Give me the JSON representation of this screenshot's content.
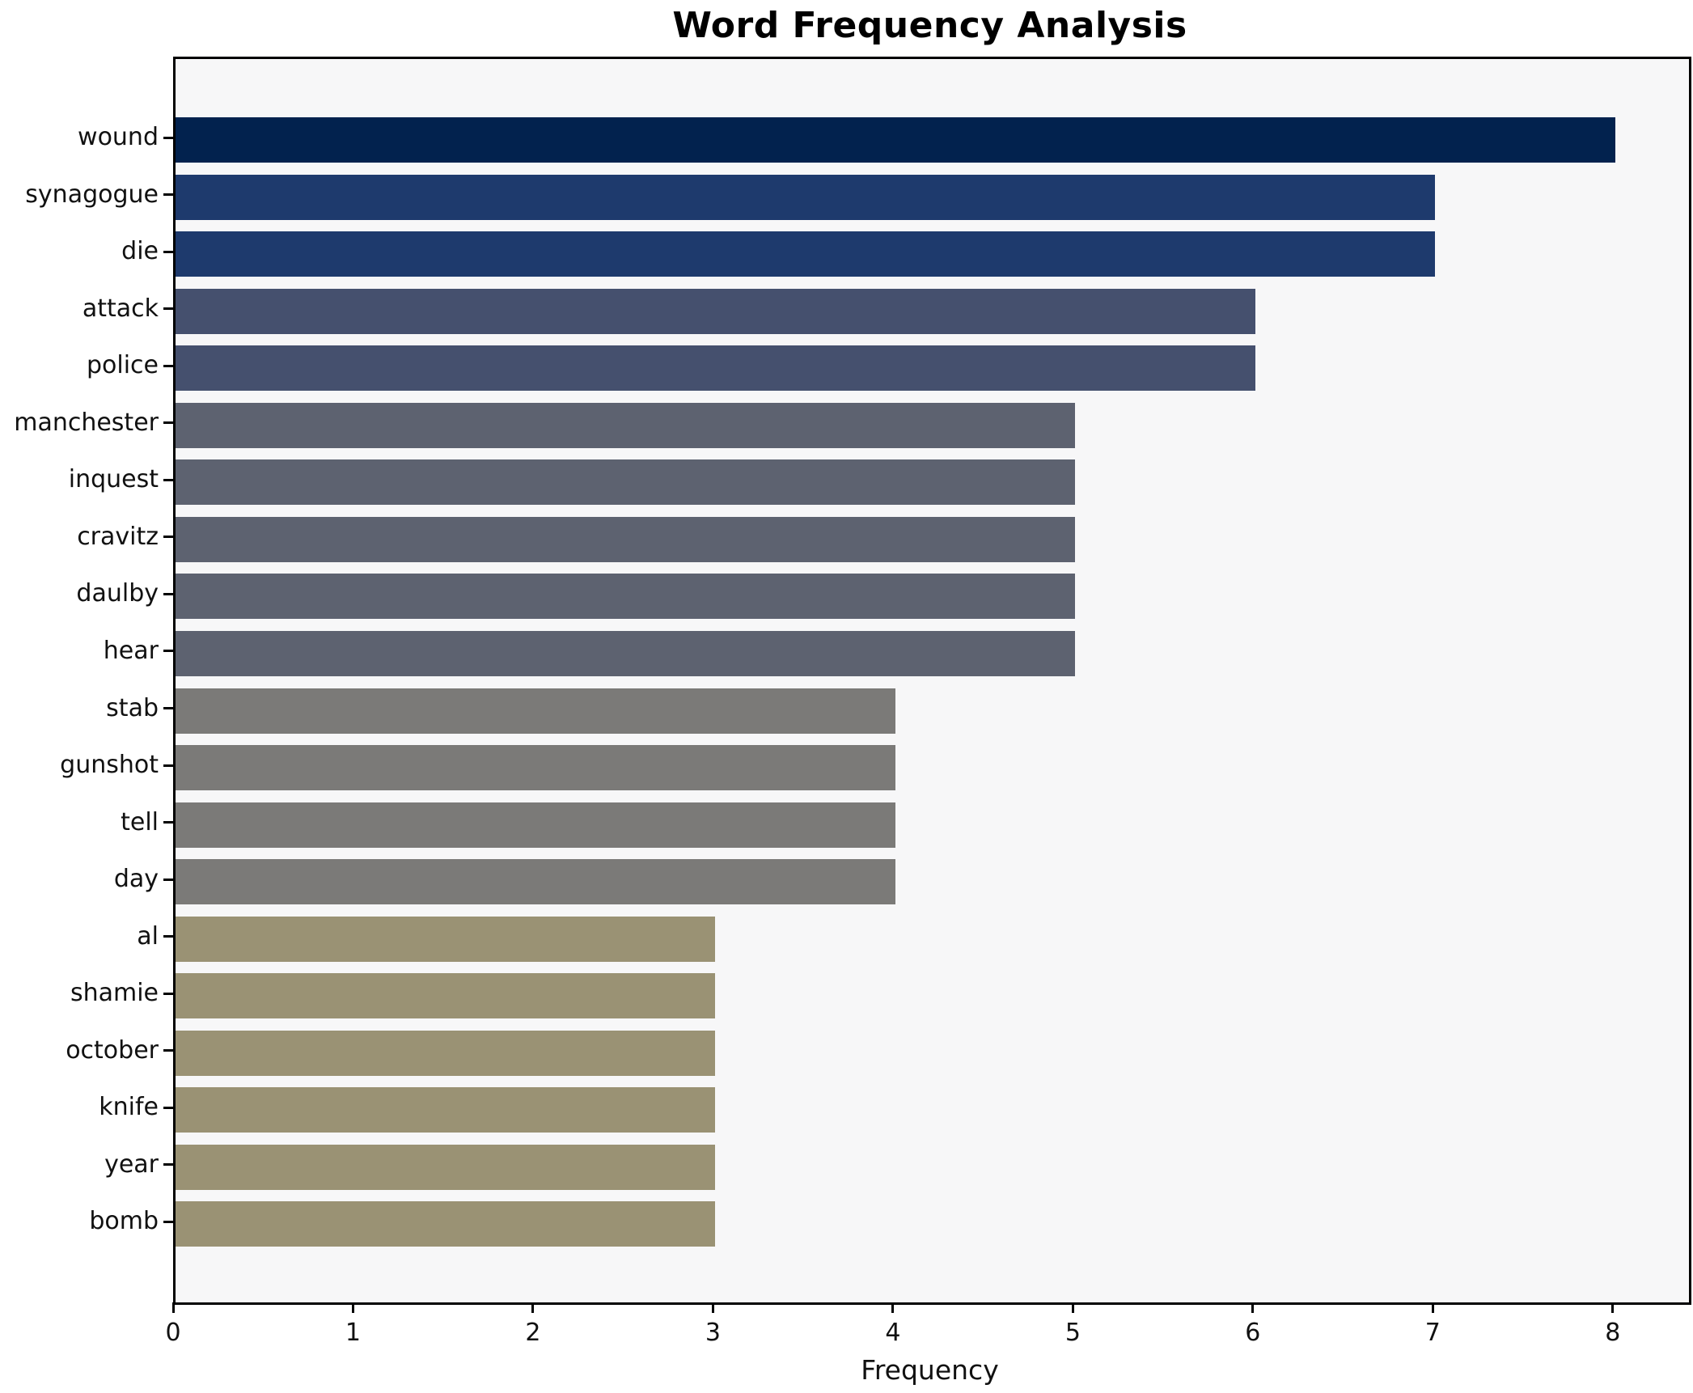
{
  "title": "Word Frequency Analysis",
  "chart_data": {
    "type": "bar",
    "orientation": "horizontal",
    "title": "Word Frequency Analysis",
    "xlabel": "Frequency",
    "ylabel": "",
    "categories": [
      "wound",
      "synagogue",
      "die",
      "attack",
      "police",
      "manchester",
      "inquest",
      "cravitz",
      "daulby",
      "hear",
      "stab",
      "gunshot",
      "tell",
      "day",
      "al",
      "shamie",
      "october",
      "knife",
      "year",
      "bomb"
    ],
    "values": [
      8,
      7,
      7,
      6,
      6,
      5,
      5,
      5,
      5,
      5,
      4,
      4,
      4,
      4,
      3,
      3,
      3,
      3,
      3,
      3
    ],
    "bar_colors": [
      "#02224e",
      "#1e3a6d",
      "#1e3a6d",
      "#45506e",
      "#45506e",
      "#5d6270",
      "#5d6270",
      "#5d6270",
      "#5d6270",
      "#5d6270",
      "#7b7a78",
      "#7b7a78",
      "#7b7a78",
      "#7b7a78",
      "#9a9274",
      "#9a9274",
      "#9a9274",
      "#9a9274",
      "#9a9274",
      "#9a9274"
    ],
    "xticks": [
      0,
      1,
      2,
      3,
      4,
      5,
      6,
      7,
      8
    ],
    "xlim": [
      0,
      8.41
    ],
    "grid": false,
    "legend": false,
    "plot_background": "#f7f7f8",
    "frame_color": "#000000"
  }
}
